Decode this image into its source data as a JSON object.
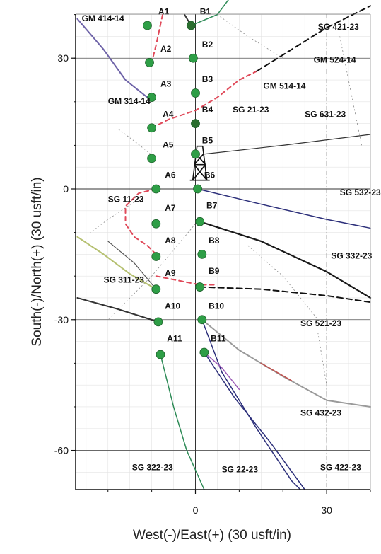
{
  "chart_data": {
    "type": "scatter",
    "title": "",
    "xlabel": "West(-)/East(+) (30 usft/in)",
    "ylabel": "South(-)/North(+) (30 usft/in)",
    "xlim": [
      -27,
      40
    ],
    "ylim": [
      -69,
      41
    ],
    "x_ticks": [
      {
        "value": 0,
        "label": "0"
      },
      {
        "value": 30,
        "label": "30"
      }
    ],
    "y_ticks": [
      {
        "value": 30,
        "label": "30"
      },
      {
        "value": 0,
        "label": "0"
      },
      {
        "value": -30,
        "label": "-30"
      },
      {
        "value": -60,
        "label": "-60"
      }
    ],
    "grid": true,
    "rig": {
      "x": 1,
      "y": 2
    },
    "points": [
      {
        "name": "A1",
        "x": -11,
        "y": 37.5,
        "color": "#2e9e46"
      },
      {
        "name": "A2",
        "x": -10.5,
        "y": 29,
        "color": "#2e9e46"
      },
      {
        "name": "A3",
        "x": -10,
        "y": 21,
        "color": "#2e9e46"
      },
      {
        "name": "A4",
        "x": -10,
        "y": 14,
        "color": "#2e9e46"
      },
      {
        "name": "A5",
        "x": -10,
        "y": 7,
        "color": "#2e9e46"
      },
      {
        "name": "A6",
        "x": -9,
        "y": 0,
        "color": "#2e9e46"
      },
      {
        "name": "A7",
        "x": -9,
        "y": -8,
        "color": "#2e9e46"
      },
      {
        "name": "A8",
        "x": -9,
        "y": -15.5,
        "color": "#2e9e46"
      },
      {
        "name": "A9",
        "x": -9,
        "y": -23,
        "color": "#2e9e46"
      },
      {
        "name": "A10",
        "x": -8.5,
        "y": -30.5,
        "color": "#2e9e46"
      },
      {
        "name": "A11",
        "x": -8,
        "y": -38,
        "color": "#2e9e46"
      },
      {
        "name": "B1",
        "x": -1,
        "y": 37.5,
        "color": "#2a6e2f"
      },
      {
        "name": "B2",
        "x": -0.5,
        "y": 30,
        "color": "#2e9e46"
      },
      {
        "name": "B3",
        "x": 0,
        "y": 22,
        "color": "#2e9e46"
      },
      {
        "name": "B4",
        "x": 0,
        "y": 15,
        "color": "#2a6e2f"
      },
      {
        "name": "B5",
        "x": 0,
        "y": 8,
        "color": "#2e9e46"
      },
      {
        "name": "B6",
        "x": 0.5,
        "y": 0,
        "color": "#2e9e46"
      },
      {
        "name": "B7",
        "x": 1,
        "y": -7.5,
        "color": "#2e9e46"
      },
      {
        "name": "B8",
        "x": 1.5,
        "y": -15,
        "color": "#2e9e46"
      },
      {
        "name": "B9",
        "x": 1,
        "y": -22.5,
        "color": "#2e9e46"
      },
      {
        "name": "B10",
        "x": 1.5,
        "y": -30,
        "color": "#2e9e46"
      },
      {
        "name": "B11",
        "x": 2,
        "y": -37.5,
        "color": "#2e9e46"
      }
    ],
    "point_labels": [
      {
        "text": "A1",
        "x": -8.5,
        "y": 40
      },
      {
        "text": "A2",
        "x": -8,
        "y": 31.5
      },
      {
        "text": "A3",
        "x": -8,
        "y": 23.5
      },
      {
        "text": "A4",
        "x": -7.5,
        "y": 16.5
      },
      {
        "text": "A5",
        "x": -7.5,
        "y": 9.5
      },
      {
        "text": "A6",
        "x": -7,
        "y": 2.5
      },
      {
        "text": "A7",
        "x": -7,
        "y": -5
      },
      {
        "text": "A8",
        "x": -7,
        "y": -12.5
      },
      {
        "text": "A9",
        "x": -7,
        "y": -20
      },
      {
        "text": "A10",
        "x": -7,
        "y": -27.5
      },
      {
        "text": "A11",
        "x": -6.5,
        "y": -35
      },
      {
        "text": "B1",
        "x": 1,
        "y": 40
      },
      {
        "text": "B2",
        "x": 1.5,
        "y": 32.5
      },
      {
        "text": "B3",
        "x": 1.5,
        "y": 24.5
      },
      {
        "text": "B4",
        "x": 1.5,
        "y": 17.5
      },
      {
        "text": "B5",
        "x": 1.5,
        "y": 10.5
      },
      {
        "text": "B6",
        "x": 2,
        "y": 2.5
      },
      {
        "text": "B7",
        "x": 2.5,
        "y": -4.5
      },
      {
        "text": "B8",
        "x": 3,
        "y": -12.5
      },
      {
        "text": "B9",
        "x": 3,
        "y": -19.5
      },
      {
        "text": "B10",
        "x": 3,
        "y": -27.5
      },
      {
        "text": "B11",
        "x": 3.5,
        "y": -35
      }
    ],
    "well_labels": [
      {
        "text": "GM 414-14",
        "x": -26,
        "y": 38.5
      },
      {
        "text": "SG 421-23",
        "x": 28,
        "y": 36.5
      },
      {
        "text": "GM 524-14",
        "x": 27,
        "y": 29
      },
      {
        "text": "GM 314-14",
        "x": -20,
        "y": 19.5
      },
      {
        "text": "GM 514-14",
        "x": 15.5,
        "y": 23
      },
      {
        "text": "SG 21-23",
        "x": 8.5,
        "y": 17.5
      },
      {
        "text": "SG 631-23",
        "x": 25,
        "y": 16.5
      },
      {
        "text": "SG 11-23",
        "x": -20,
        "y": -3
      },
      {
        "text": "SG 532-23",
        "x": 33,
        "y": -1.5
      },
      {
        "text": "SG 332-23",
        "x": 31,
        "y": -16
      },
      {
        "text": "SG 311-23",
        "x": -21,
        "y": -21.5
      },
      {
        "text": "SG 521-23",
        "x": 24,
        "y": -31.5
      },
      {
        "text": "SG 432-23",
        "x": 24,
        "y": -52
      },
      {
        "text": "SG 322-23",
        "x": -14.5,
        "y": -64.5
      },
      {
        "text": "SG 22-23",
        "x": 6,
        "y": -65
      },
      {
        "text": "SG 422-23",
        "x": 28.5,
        "y": -64.5
      }
    ],
    "well_paths": [
      {
        "name": "GM 414-14",
        "color": "#6e63a8",
        "width": 2,
        "dash": "",
        "points": [
          [
            -27,
            39
          ],
          [
            -21,
            32
          ],
          [
            -16,
            25
          ],
          [
            -11,
            21
          ]
        ]
      },
      {
        "name": "B1 path",
        "color": "#2e8b57",
        "width": 1.5,
        "dash": "",
        "points": [
          [
            -1,
            37.5
          ],
          [
            5,
            40
          ],
          [
            8,
            44
          ]
        ]
      },
      {
        "name": "B1 stub",
        "color": "#333333",
        "width": 2,
        "dash": "",
        "points": [
          [
            -2.5,
            40
          ],
          [
            -1,
            37.5
          ]
        ]
      },
      {
        "name": "A-pad plan",
        "color": "#e04a5a",
        "width": 2,
        "dash": "6,5",
        "points": [
          [
            -7.5,
            40
          ],
          [
            -9,
            33
          ],
          [
            -10,
            29
          ]
        ]
      },
      {
        "name": "SG 21-23",
        "color": "#e04a5a",
        "width": 2,
        "dash": "6,5",
        "points": [
          [
            -10,
            14
          ],
          [
            -6,
            16
          ],
          [
            0,
            18
          ],
          [
            5,
            21
          ],
          [
            10,
            25
          ],
          [
            14,
            27
          ]
        ]
      },
      {
        "name": "GM 514-14",
        "color": "#111111",
        "width": 2,
        "dash": "8,5",
        "points": [
          [
            14,
            27
          ],
          [
            22,
            32
          ],
          [
            30,
            37
          ],
          [
            40,
            42
          ]
        ]
      },
      {
        "name": "SG 631-23",
        "color": "#333333",
        "width": 1.2,
        "dash": "",
        "points": [
          [
            2,
            8
          ],
          [
            20,
            10
          ],
          [
            40,
            12.5
          ]
        ]
      },
      {
        "name": "SG 11-23",
        "color": "#e04a5a",
        "width": 2,
        "dash": "6,5",
        "points": [
          [
            -9,
            0
          ],
          [
            -13,
            -1
          ],
          [
            -16,
            -4
          ],
          [
            -16,
            -8
          ],
          [
            -14,
            -11
          ],
          [
            -11,
            -13
          ],
          [
            -9,
            -15
          ]
        ]
      },
      {
        "name": "SG 11-23 lower",
        "color": "#e04a5a",
        "width": 2,
        "dash": "6,5",
        "points": [
          [
            -9,
            -20
          ],
          [
            -4,
            -21
          ],
          [
            1,
            -22
          ],
          [
            5,
            -22
          ]
        ]
      },
      {
        "name": "SG 532-23",
        "color": "#2c2f7a",
        "width": 1.5,
        "dash": "",
        "points": [
          [
            0.5,
            0
          ],
          [
            15,
            -3.5
          ],
          [
            30,
            -7
          ],
          [
            40,
            -9
          ]
        ]
      },
      {
        "name": "SG 332-23",
        "color": "#1a1a1a",
        "width": 2.2,
        "dash": "",
        "points": [
          [
            1,
            -7.5
          ],
          [
            15,
            -12
          ],
          [
            30,
            -19
          ],
          [
            40,
            -25
          ]
        ]
      },
      {
        "name": "SG 311-23",
        "color": "#b5c070",
        "width": 2,
        "dash": "",
        "points": [
          [
            -27,
            -11
          ],
          [
            -21,
            -15
          ],
          [
            -15,
            -19.5
          ],
          [
            -9,
            -23
          ]
        ]
      },
      {
        "name": "SG 311-23 gray",
        "color": "#555555",
        "width": 1.2,
        "dash": "",
        "points": [
          [
            -20,
            -12
          ],
          [
            -14,
            -17
          ],
          [
            -9,
            -23
          ]
        ]
      },
      {
        "name": "SG 521-23 dash",
        "color": "#111111",
        "width": 2,
        "dash": "8,5",
        "points": [
          [
            1,
            -22.5
          ],
          [
            15,
            -23
          ],
          [
            30,
            -24.5
          ],
          [
            40,
            -26
          ]
        ]
      },
      {
        "name": "A10 path",
        "color": "#333333",
        "width": 2,
        "dash": "",
        "points": [
          [
            -27,
            -25
          ],
          [
            -18,
            -27.5
          ],
          [
            -8.5,
            -30.5
          ]
        ]
      },
      {
        "name": "SG 432-23",
        "color": "#9a9a9a",
        "width": 2,
        "dash": "",
        "points": [
          [
            1.5,
            -30
          ],
          [
            10,
            -37
          ],
          [
            20,
            -43
          ],
          [
            30,
            -48.5
          ],
          [
            40,
            -50
          ]
        ]
      },
      {
        "name": "SG 432-23 red",
        "color": "#c0504d",
        "width": 1.5,
        "dash": "",
        "points": [
          [
            15,
            -40
          ],
          [
            22,
            -44
          ]
        ]
      },
      {
        "name": "SG 322-23",
        "color": "#2e8b57",
        "width": 1.5,
        "dash": "",
        "points": [
          [
            -8,
            -38
          ],
          [
            -5,
            -50
          ],
          [
            -2,
            -60
          ],
          [
            2,
            -69
          ]
        ]
      },
      {
        "name": "SG 22-23",
        "color": "#2c2f7a",
        "width": 1.5,
        "dash": "",
        "points": [
          [
            1.5,
            -30
          ],
          [
            6,
            -42
          ],
          [
            14,
            -55
          ],
          [
            22,
            -67
          ],
          [
            24,
            -69
          ]
        ]
      },
      {
        "name": "SG 422-23",
        "color": "#2c2f7a",
        "width": 1.5,
        "dash": "",
        "points": [
          [
            2,
            -37.5
          ],
          [
            9,
            -48
          ],
          [
            17,
            -58
          ],
          [
            25,
            -69
          ]
        ]
      },
      {
        "name": "B11 purple",
        "color": "#9b59b6",
        "width": 1.5,
        "dash": "",
        "points": [
          [
            2,
            -37.5
          ],
          [
            6,
            -41
          ],
          [
            10,
            -46
          ]
        ]
      }
    ],
    "faint_lines": [
      {
        "points": [
          [
            -9,
            7
          ],
          [
            -14,
            11
          ],
          [
            -18,
            14
          ]
        ]
      },
      {
        "points": [
          [
            5,
            40
          ],
          [
            12,
            35
          ],
          [
            20,
            30
          ]
        ]
      },
      {
        "points": [
          [
            -14,
            -3
          ],
          [
            -20,
            -7
          ],
          [
            -24,
            -10
          ]
        ]
      },
      {
        "points": [
          [
            0,
            -8
          ],
          [
            -10,
            -20
          ],
          [
            -20,
            -30
          ]
        ]
      },
      {
        "points": [
          [
            12,
            -13
          ],
          [
            20,
            -20
          ],
          [
            28,
            -30
          ]
        ]
      },
      {
        "points": [
          [
            33,
            35
          ],
          [
            36,
            20
          ],
          [
            38,
            10
          ]
        ]
      },
      {
        "points": [
          [
            28,
            -33
          ],
          [
            30,
            -45
          ],
          [
            30,
            -60
          ]
        ]
      }
    ]
  }
}
